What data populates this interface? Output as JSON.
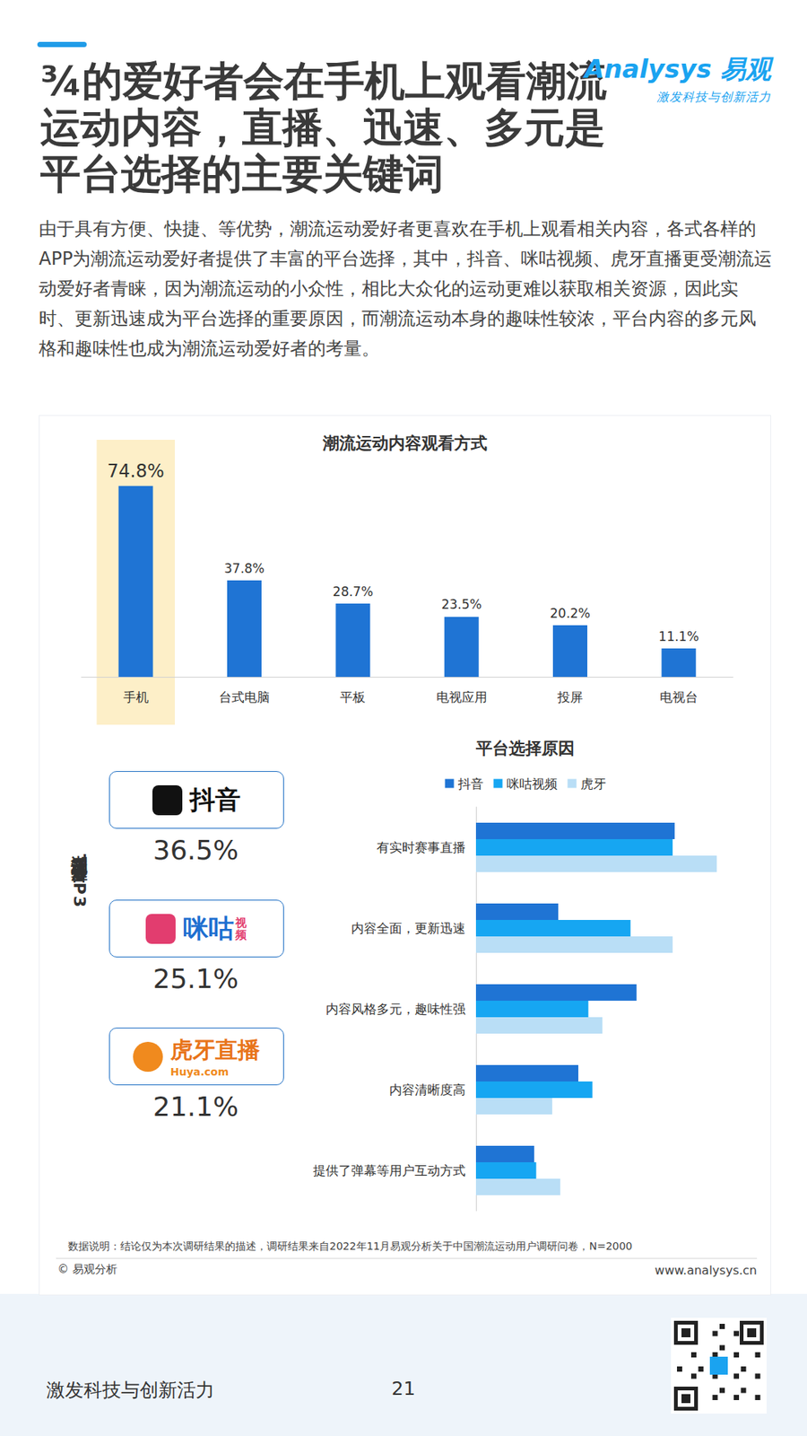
{
  "header": {
    "title": "¾的爱好者会在手机上观看潮流运动内容，直播、迅速、多元是平台选择的主要关键词",
    "brand": "Analysys 易观",
    "slogan": "激发科技与创新活力"
  },
  "intro": "由于具有方便、快捷、等优势，潮流运动爱好者更喜欢在手机上观看相关内容，各式各样的APP为潮流运动爱好者提供了丰富的平台选择，其中，抖音、咪咕视频、虎牙直播更受潮流运动爱好者青睐，因为潮流运动的小众性，相比大众化的运动更难以获取相关资源，因此实时、更新迅速成为平台选择的重要原因，而潮流运动本身的趣味性较浓，平台内容的多元风格和趣味性也成为潮流运动爱好者的考量。",
  "chart_data": [
    {
      "type": "bar",
      "title": "潮流运动内容观看方式",
      "categories": [
        "手机",
        "台式电脑",
        "平板",
        "电视应用",
        "投屏",
        "电视台"
      ],
      "values": [
        74.8,
        37.8,
        28.7,
        23.5,
        20.2,
        11.1
      ],
      "value_labels": [
        "74.8%",
        "37.8%",
        "28.7%",
        "23.5%",
        "20.2%",
        "11.1%"
      ],
      "color": "#1f74d4",
      "ylim": [
        0,
        80
      ],
      "data_labels": true,
      "tick_labels": "x",
      "grid": false
    },
    {
      "type": "bar",
      "title": "平台选择原因",
      "orientation": "horizontal",
      "categories": [
        "有实时赛事直播",
        "内容全面，更新迅速",
        "内容风格多元，趣味性强",
        "内容清晰度高",
        "提供了弹幕等用户互动方式"
      ],
      "series": [
        {
          "name": "抖音",
          "color": "#1f74d4",
          "values": [
            49.5,
            20.5,
            40,
            25.5,
            14.5
          ]
        },
        {
          "name": "咪咕视频",
          "color": "#16a6f2",
          "values": [
            49,
            38.5,
            28,
            29,
            15
          ]
        },
        {
          "name": "虎牙",
          "color": "#b9def6",
          "values": [
            60,
            49,
            31.5,
            19,
            21
          ]
        }
      ],
      "xlim": [
        0,
        70
      ],
      "legend": "top",
      "tick_labels": "y",
      "grid": false
    }
  ],
  "platforms": {
    "title": "潮流运动关注平台TOP3",
    "items": [
      {
        "logo": "抖音",
        "share": "36.5%"
      },
      {
        "logo": "咪咕",
        "logo_sub": "视频",
        "share": "25.1%"
      },
      {
        "logo": "虎牙直播",
        "logo_sub": "Huya.com",
        "share": "21.1%"
      }
    ]
  },
  "note": "数据说明：结论仅为本次调研结果的描述，调研结果来自2022年11月易观分析关于中国潮流运动用户调研问卷，N=2000",
  "copyright": "© 易观分析",
  "url": "www.analysys.cn",
  "footer": {
    "slogan": "激发科技与创新活力",
    "page": "21"
  }
}
